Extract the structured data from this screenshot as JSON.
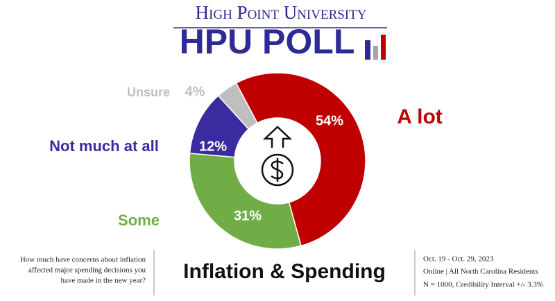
{
  "header": {
    "university": "High Point University",
    "poll": "HPU POLL"
  },
  "chart_data": {
    "type": "pie",
    "categories": [
      "A lot",
      "Some",
      "Not much at all",
      "Unsure"
    ],
    "values": [
      54,
      31,
      12,
      4
    ],
    "value_labels": [
      "54%",
      "31%",
      "12%",
      "4%"
    ],
    "colors": [
      "#c00000",
      "#70ad47",
      "#3a2ca0",
      "#bfbfbf"
    ]
  },
  "footer": {
    "question": [
      "How much have concerns about inflation",
      "affected major spending decisions you",
      "have made in the new year?"
    ],
    "title": "Inflation & Spending",
    "dates": "Oct. 19 - Oct. 29, 2023",
    "method": "Online | All North Carolina Residents",
    "sample": "N = 1000, Credibility Interval +/- 3.3%"
  }
}
